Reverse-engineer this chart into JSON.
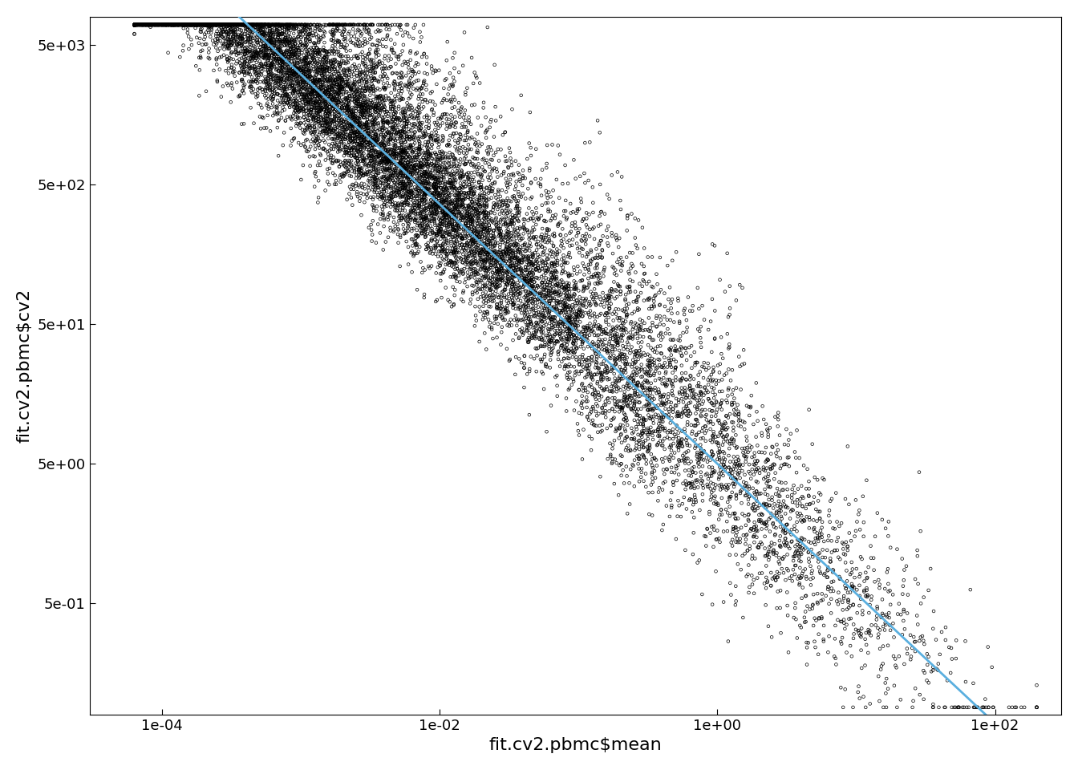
{
  "xlabel": "fit.cv2.pbmc$mean",
  "ylabel": "fit.cv2.pbmc$cv2",
  "xlim": [
    3e-05,
    300.0
  ],
  "ylim": [
    0.08,
    8000
  ],
  "x_ticks": [
    0.0001,
    0.01,
    1.0,
    100.0
  ],
  "x_tick_labels": [
    "1e-04",
    "1e-02",
    "1e+00",
    "1e+02"
  ],
  "y_ticks": [
    0.5,
    5.0,
    50.0,
    500.0,
    5000.0
  ],
  "y_tick_labels": [
    "5e-01",
    "5e+00",
    "5e+01",
    "5e+02",
    "5e+03"
  ],
  "line_color": "#5aafdf",
  "scatter_color": "black",
  "scatter_facecolor": "none",
  "scatter_size": 7,
  "scatter_linewidth": 0.5,
  "n_points": 13000,
  "seed": 42,
  "background_color": "white",
  "line_x_start": 4e-05,
  "line_x_end": 250.0,
  "line_a": 5.0,
  "line_b": -0.93,
  "font_size_labels": 16,
  "font_size_ticks": 13
}
